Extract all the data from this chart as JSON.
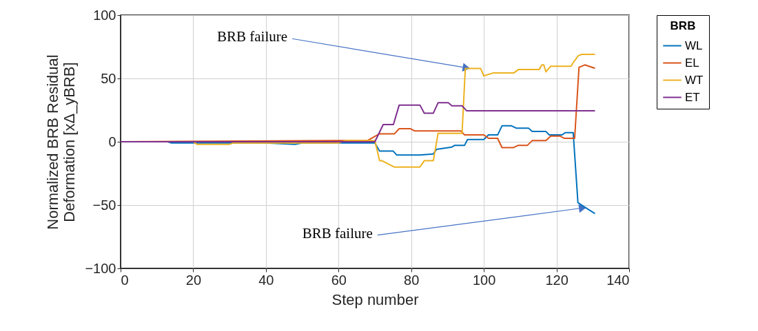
{
  "chart_data": {
    "type": "line",
    "xlabel": "Step number",
    "ylabel": "Normalized BRB Residual Deformation [xΔ_yBRB]",
    "legend_title": "BRB",
    "legend": "right",
    "grid": true,
    "line_style": "solid",
    "xlim": [
      0,
      140
    ],
    "ylim": [
      -100,
      100
    ],
    "xticks": [
      0,
      20,
      40,
      60,
      80,
      100,
      120,
      140
    ],
    "yticks": [
      -100,
      -50,
      0,
      50,
      100
    ],
    "series": [
      {
        "name": "WL",
        "color": "#0072bd",
        "x": [
          0,
          13,
          14,
          40,
          48,
          50,
          62,
          70,
          71.3,
          75,
          76,
          82.4,
          86.1,
          87,
          91.2,
          92,
          94.7,
          95.5,
          100,
          101.3,
          103.8,
          105,
          107.6,
          108.9,
          112.3,
          113.3,
          117.1,
          118,
          121.5,
          122.4,
          124.6,
          125.9,
          127.8,
          130.6
        ],
        "values": [
          0,
          0,
          -1,
          -1,
          -2,
          -1,
          -1,
          -1,
          -7.3,
          -7.3,
          -10.4,
          -10.4,
          -9.6,
          -6,
          -4.2,
          -2.8,
          -2.8,
          1.8,
          1.8,
          5.4,
          5.4,
          12.6,
          12.6,
          10.8,
          10.8,
          8.1,
          8.1,
          5.4,
          5.4,
          7.2,
          7.2,
          -48,
          -51.7,
          -56.7
        ]
      },
      {
        "name": "EL",
        "color": "#d95319",
        "x": [
          0,
          60,
          68,
          71.3,
          75.4,
          76.7,
          79.8,
          81,
          93.7,
          94.7,
          100,
          101.3,
          103.8,
          105,
          108.2,
          109.5,
          112,
          113.3,
          117.1,
          118.4,
          120.9,
          122.2,
          125,
          126.2,
          127.8,
          130.6
        ],
        "values": [
          0,
          1,
          1,
          6.3,
          6.3,
          10.3,
          10.3,
          8.5,
          8.5,
          5.4,
          5.4,
          2.7,
          2.7,
          -4.6,
          -4.6,
          -2.8,
          -2.8,
          0.9,
          0.9,
          4.5,
          4.5,
          2.7,
          2.7,
          58.8,
          60.7,
          58
        ]
      },
      {
        "name": "WT",
        "color": "#edb120",
        "x": [
          0,
          20,
          21,
          30,
          31,
          60,
          62,
          70,
          71.3,
          72,
          75.4,
          82.4,
          83.6,
          86.1,
          87.4,
          94,
          94.9,
          99.1,
          100,
          102.5,
          108.2,
          109.5,
          115.2,
          116,
          116.5,
          117.1,
          118.4,
          124,
          124.6,
          126,
          127,
          130.6
        ],
        "values": [
          0,
          0,
          -2,
          -2,
          -1,
          -1,
          1,
          1,
          -15,
          -15,
          -20,
          -20,
          -15,
          -15,
          6.7,
          6.7,
          57.9,
          57.9,
          52,
          54.3,
          54.3,
          57,
          57,
          60.7,
          60.7,
          55.2,
          59.7,
          59.7,
          62.5,
          68,
          69,
          69
        ]
      },
      {
        "name": "ET",
        "color": "#7e2f8e",
        "x": [
          0,
          70,
          72.3,
          75.1,
          76.7,
          82.4,
          83.6,
          86.1,
          87.4,
          90.2,
          91.2,
          94,
          95.3,
          130.6
        ],
        "values": [
          0,
          0,
          13.6,
          13.6,
          29,
          29,
          22.6,
          22.6,
          30.8,
          30.8,
          28.4,
          28.4,
          24.4,
          24.4
        ]
      }
    ],
    "annotations": [
      {
        "text": "BRB failure",
        "x": 96,
        "y": 58
      },
      {
        "text": "BRB failure",
        "x": 128,
        "y": -52
      }
    ]
  }
}
